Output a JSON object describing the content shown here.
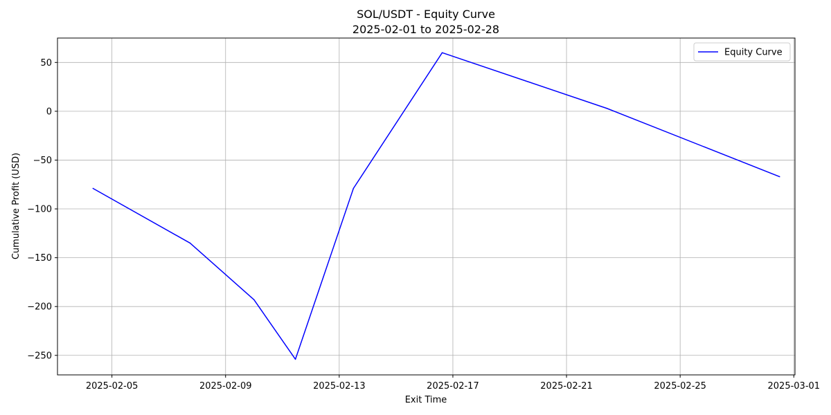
{
  "chart_data": {
    "type": "line",
    "title": "SOL/USDT - Equity Curve",
    "subtitle": "2025-02-01 to 2025-02-28",
    "xlabel": "Exit Time",
    "ylabel": "Cumulative Profit (USD)",
    "x_ticks": [
      "2025-02-05",
      "2025-02-09",
      "2025-02-13",
      "2025-02-17",
      "2025-02-21",
      "2025-02-25",
      "2025-03-01"
    ],
    "y_ticks": [
      50,
      0,
      -50,
      -100,
      -150,
      -200,
      -250
    ],
    "xlim": [
      "2025-02-03 02:00",
      "2025-03-01 01:00"
    ],
    "ylim": [
      -270,
      75
    ],
    "grid": true,
    "legend_position": "top-right",
    "series": [
      {
        "name": "Equity Curve",
        "color": "#0000ff",
        "points": [
          {
            "x": "2025-02-04 08:00",
            "y": -79
          },
          {
            "x": "2025-02-07 18:00",
            "y": -135
          },
          {
            "x": "2025-02-10 00:00",
            "y": -193
          },
          {
            "x": "2025-02-11 11:00",
            "y": -254
          },
          {
            "x": "2025-02-13 12:00",
            "y": -79
          },
          {
            "x": "2025-02-16 15:00",
            "y": 60
          },
          {
            "x": "2025-02-22 10:00",
            "y": 3
          },
          {
            "x": "2025-02-28 12:00",
            "y": -67
          }
        ]
      }
    ]
  }
}
